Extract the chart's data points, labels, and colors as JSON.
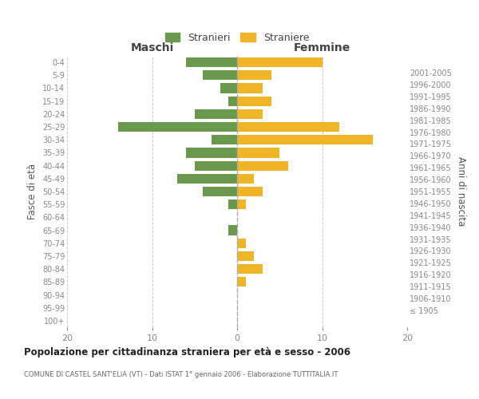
{
  "age_groups": [
    "100+",
    "95-99",
    "90-94",
    "85-89",
    "80-84",
    "75-79",
    "70-74",
    "65-69",
    "60-64",
    "55-59",
    "50-54",
    "45-49",
    "40-44",
    "35-39",
    "30-34",
    "25-29",
    "20-24",
    "15-19",
    "10-14",
    "5-9",
    "0-4"
  ],
  "birth_years": [
    "≤ 1905",
    "1906-1910",
    "1911-1915",
    "1916-1920",
    "1921-1925",
    "1926-1930",
    "1931-1935",
    "1936-1940",
    "1941-1945",
    "1946-1950",
    "1951-1955",
    "1956-1960",
    "1961-1965",
    "1966-1970",
    "1971-1975",
    "1976-1980",
    "1981-1985",
    "1986-1990",
    "1991-1995",
    "1996-2000",
    "2001-2005"
  ],
  "males": [
    0,
    0,
    0,
    0,
    0,
    0,
    0,
    1,
    0,
    1,
    4,
    7,
    5,
    6,
    3,
    14,
    5,
    1,
    2,
    4,
    6
  ],
  "females": [
    0,
    0,
    0,
    1,
    3,
    2,
    1,
    0,
    0,
    1,
    3,
    2,
    6,
    5,
    16,
    12,
    3,
    4,
    3,
    4,
    10
  ],
  "male_color": "#6a994e",
  "female_color": "#f0b429",
  "title": "Popolazione per cittadinanza straniera per età e sesso - 2006",
  "subtitle": "COMUNE DI CASTEL SANT'ELIA (VT) - Dati ISTAT 1° gennaio 2006 - Elaborazione TUTTITALIA.IT",
  "xlabel_left": "Maschi",
  "xlabel_right": "Femmine",
  "ylabel_left": "Fasce di età",
  "ylabel_right": "Anni di nascita",
  "legend_male": "Stranieri",
  "legend_female": "Straniere",
  "xlim": 20,
  "background_color": "#ffffff",
  "grid_color": "#cccccc",
  "tick_color": "#888888",
  "bar_height": 0.75
}
